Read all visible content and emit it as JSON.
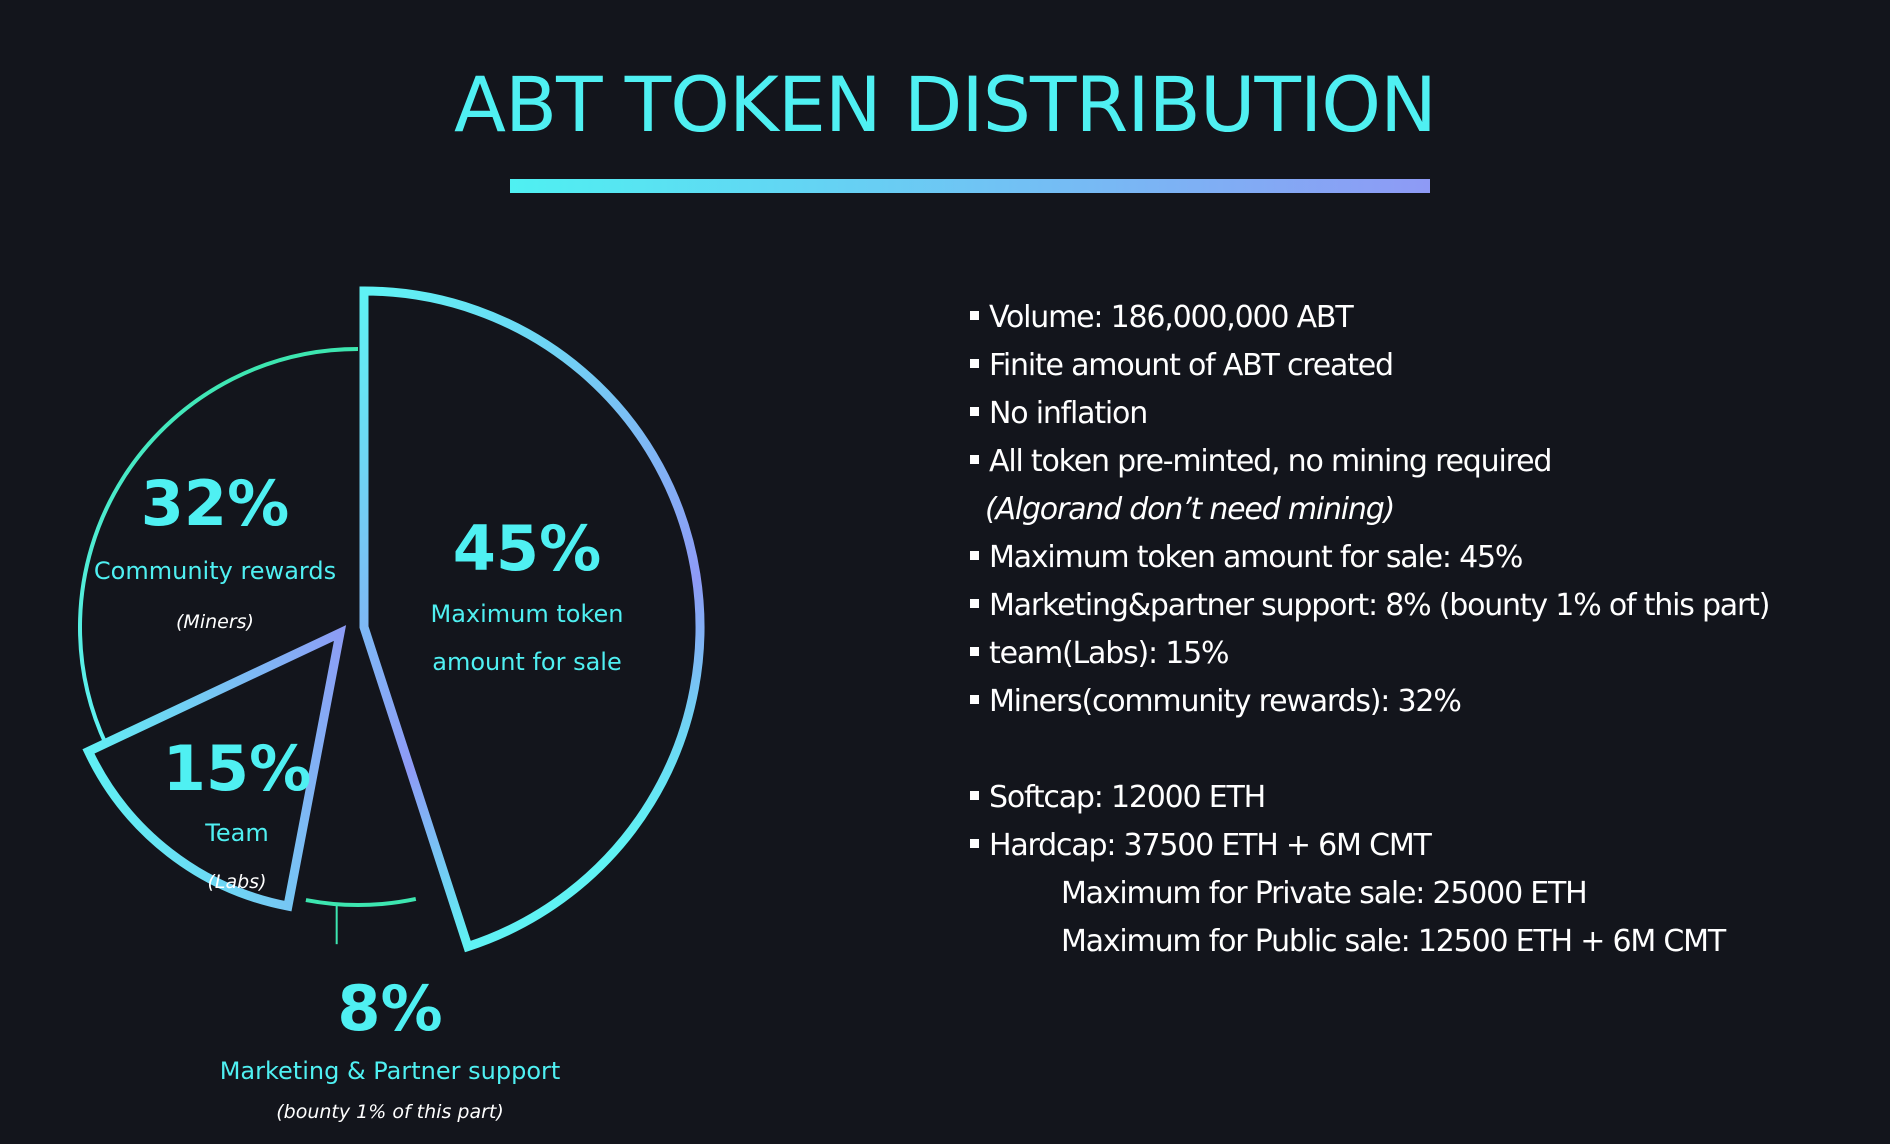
{
  "title": "ABT TOKEN DISTRIBUTION",
  "colors": {
    "background": "#13151c",
    "cyan": "#4ff0f2",
    "periwinkle": "#8e9af5",
    "green": "#3de6b0",
    "white": "#ffffff"
  },
  "chart_data": {
    "type": "pie",
    "slices": [
      {
        "value": 45,
        "label": "45%",
        "name": "Maximum token amount for sale",
        "name_lines": [
          "Maximum token",
          "amount for sale"
        ],
        "sub": "",
        "exploded": true
      },
      {
        "value": 8,
        "label": "8%",
        "name": "Marketing & Partner support",
        "name_lines": [
          "Marketing & Partner support"
        ],
        "sub": "(bounty 1% of this part)",
        "exploded": false
      },
      {
        "value": 15,
        "label": "15%",
        "name": "Team",
        "name_lines": [
          "Team"
        ],
        "sub": "(Labs)",
        "exploded": true
      },
      {
        "value": 32,
        "label": "32%",
        "name": "Community rewards",
        "name_lines": [
          "Community rewards"
        ],
        "sub": "(Miners)",
        "exploded": false
      }
    ]
  },
  "info": {
    "bullets": [
      "Volume: 186,000,000 ABT",
      "Finite amount of ABT created",
      "No inflation",
      "All token pre-minted, no mining required"
    ],
    "note": "(Algorand don’t need mining)",
    "bullets2": [
      "Maximum token amount for sale: 45%",
      "Marketing&partner support: 8% (bounty 1% of this part)",
      "team(Labs): 15%",
      "Miners(community rewards): 32%"
    ],
    "caps": [
      "Softcap: 12000 ETH",
      "Hardcap: 37500 ETH + 6M CMT"
    ],
    "sub_caps": [
      "Maximum for Private sale: 25000 ETH",
      "Maximum for Public sale: 12500 ETH + 6M CMT"
    ]
  }
}
